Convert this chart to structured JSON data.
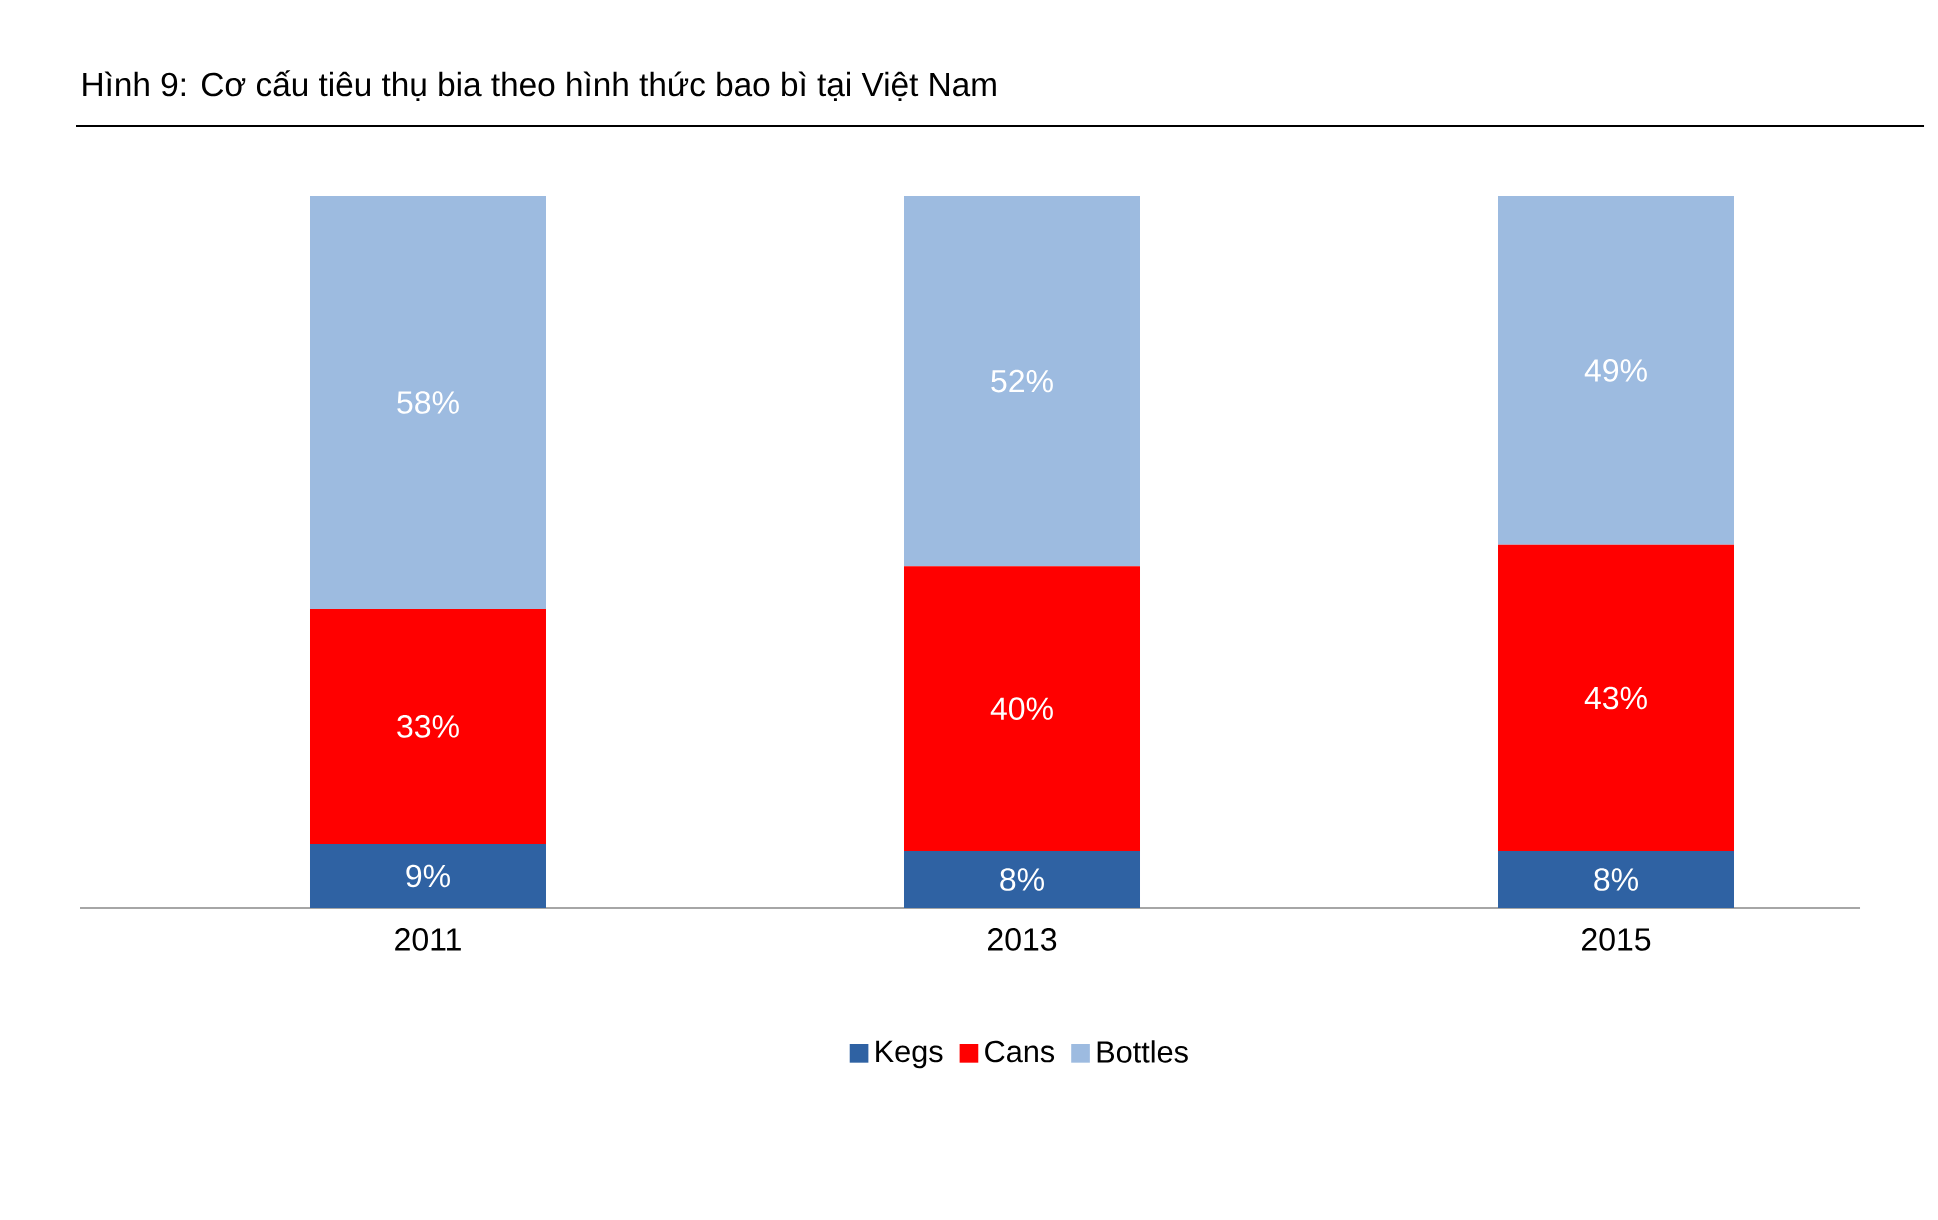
{
  "chart_data": {
    "type": "bar",
    "stacked": true,
    "title": "Hình 9: Cơ cấu tiêu thụ bia theo hình thức bao bì tại Việt Nam",
    "categories": [
      "2011",
      "2013",
      "2015"
    ],
    "legend": "bottom",
    "series": [
      {
        "name": "Kegs",
        "color": "#2f62a3",
        "values": [
          9,
          8,
          8
        ],
        "value_labels": [
          "9%",
          "8%",
          "8%"
        ]
      },
      {
        "name": "Cans",
        "color": "#ff0000",
        "values": [
          33,
          40,
          43
        ],
        "value_labels": [
          "33%",
          "40%",
          "43%"
        ]
      },
      {
        "name": "Bottles",
        "color": "#9dbbe0",
        "values": [
          58,
          52,
          49
        ],
        "value_labels": [
          "58%",
          "52%",
          "49%"
        ]
      }
    ]
  }
}
